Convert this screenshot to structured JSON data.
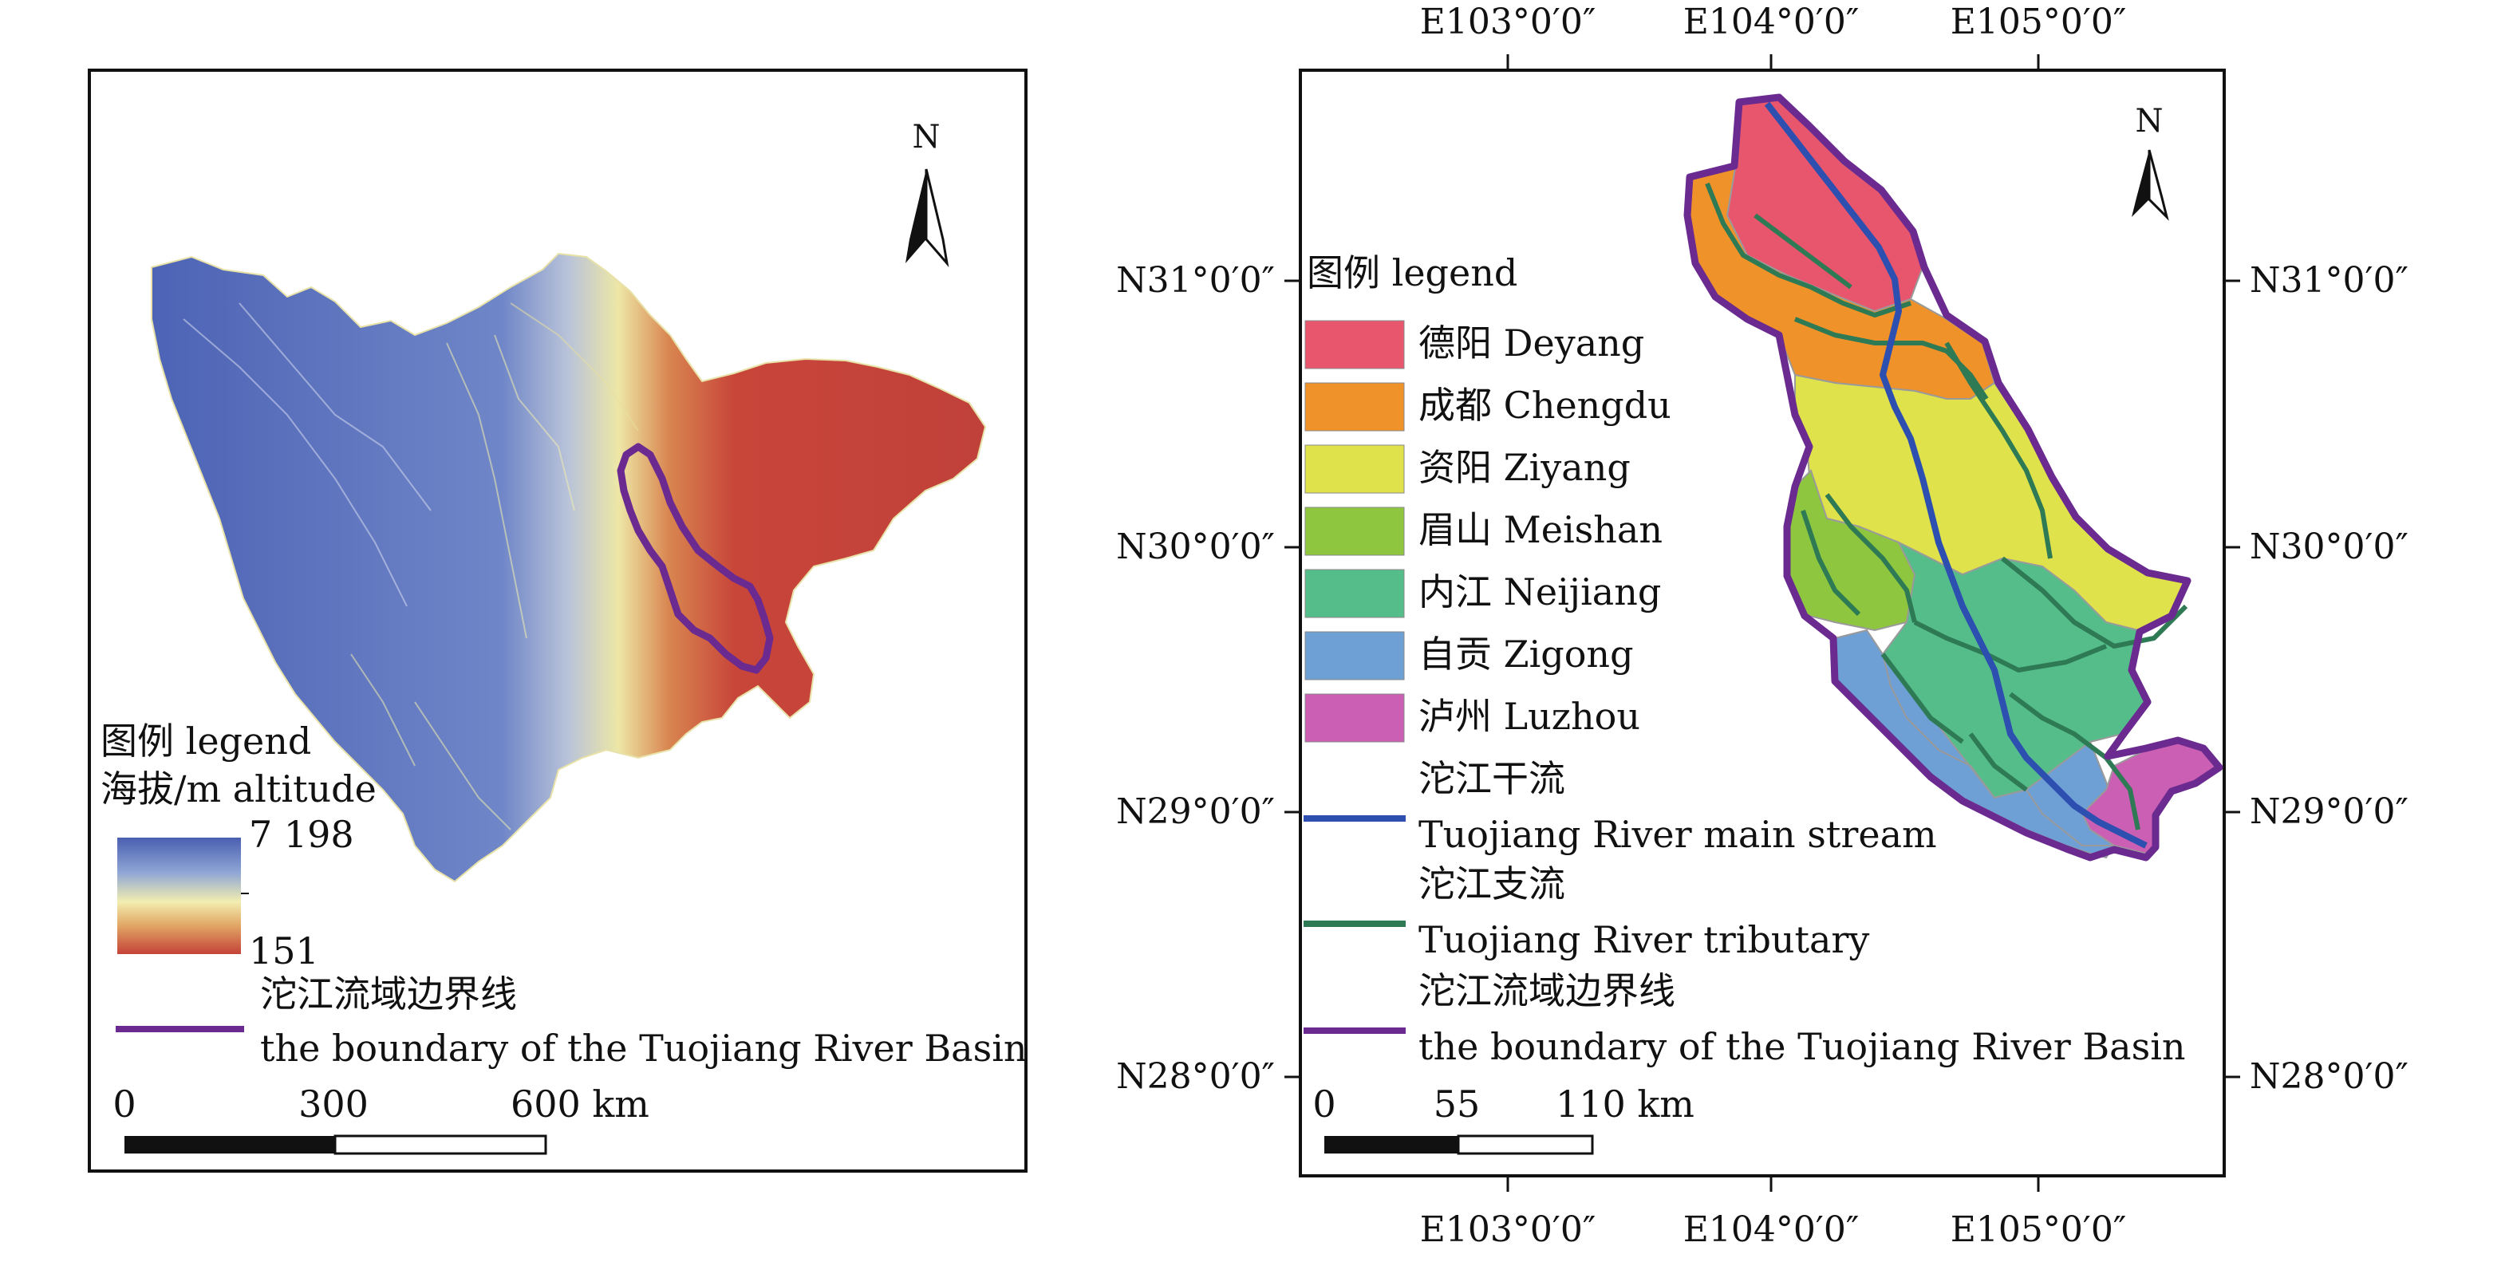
{
  "left_map": {
    "north_label": "N",
    "legend": {
      "title": "图例 legend",
      "subtitle": "海拔/m altitude",
      "gradient_max": "7 198",
      "gradient_min": "151",
      "boundary_label_cn": "沱江流域边界线",
      "boundary_label_en": "the boundary of the Tuojiang River Basin",
      "gradient_colors": [
        "#4a5fb0",
        "#8fa6d6",
        "#f2eeb0",
        "#e2a866",
        "#c44238"
      ]
    },
    "scale": {
      "ticks": [
        "0",
        "300",
        "600 km"
      ]
    },
    "colors": {
      "boundary": "#6a2a8f",
      "lowland": "#c8453a",
      "highland": "#4d63b5"
    }
  },
  "right_map": {
    "north_label": "N",
    "axes": {
      "top_labels": [
        "E103°0′0″",
        "E104°0′0″",
        "E105°0′0″"
      ],
      "bottom_labels": [
        "E103°0′0″",
        "E104°0′0″",
        "E105°0′0″"
      ],
      "left_labels": [
        "N31°0′0″",
        "N30°0′0″",
        "N29°0′0″",
        "N28°0′0″"
      ],
      "right_labels": [
        "N31°0′0″",
        "N30°0′0″",
        "N29°0′0″",
        "N28°0′0″"
      ]
    },
    "legend": {
      "title": "图例 legend",
      "regions": [
        {
          "label": "德阳 Deyang",
          "color": "#e8566e"
        },
        {
          "label": "成都 Chengdu",
          "color": "#f0922a"
        },
        {
          "label": "资阳 Ziyang",
          "color": "#dfe24a"
        },
        {
          "label": "眉山 Meishan",
          "color": "#8ec63f"
        },
        {
          "label": "内江 Neijiang",
          "color": "#55bd8a"
        },
        {
          "label": "自贡 Zigong",
          "color": "#6e9fd5"
        },
        {
          "label": "泸州 Luzhou",
          "color": "#cb5fb3"
        }
      ],
      "lines": [
        {
          "label_cn": "沱江干流",
          "label_en": "Tuojiang River main stream",
          "color": "#2d4fb0"
        },
        {
          "label_cn": "沱江支流",
          "label_en": "Tuojiang River tributary",
          "color": "#2e7a55"
        },
        {
          "label_cn": "沱江流域边界线",
          "label_en": "the boundary of the Tuojiang River Basin",
          "color": "#6a2a8f"
        }
      ]
    },
    "scale": {
      "ticks": [
        "0",
        "55",
        "110 km"
      ]
    }
  }
}
